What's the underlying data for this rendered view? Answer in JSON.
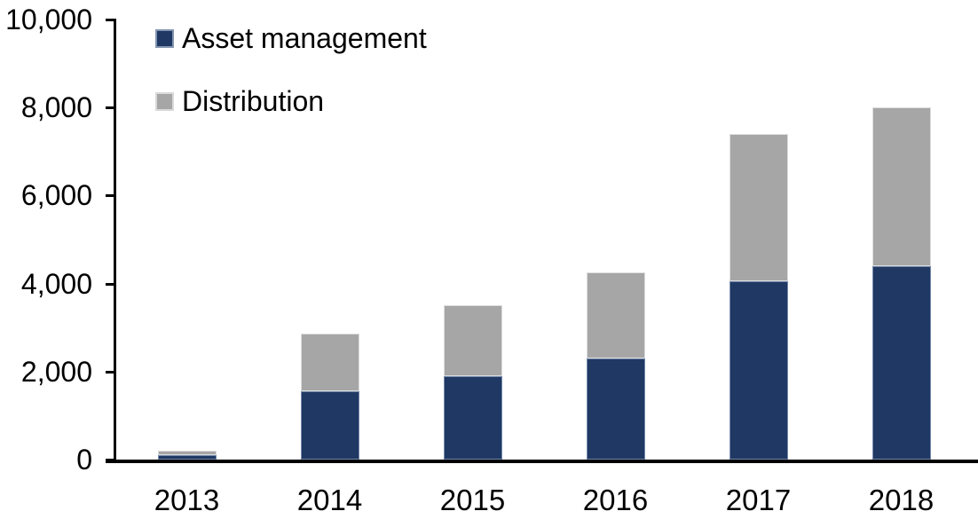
{
  "chart_data": {
    "type": "bar",
    "stacked": true,
    "title": "",
    "xlabel": "",
    "ylabel": "",
    "categories": [
      "2013",
      "2014",
      "2015",
      "2016",
      "2017",
      "2018"
    ],
    "series": [
      {
        "name": "Asset management",
        "color": "#1F3864",
        "values": [
          100,
          1550,
          1900,
          2300,
          4050,
          4400
        ]
      },
      {
        "name": "Distribution",
        "color": "#A6A6A6",
        "values": [
          100,
          1320,
          1600,
          1950,
          3350,
          3600
        ]
      }
    ],
    "totals": [
      200,
      2870,
      3500,
      4250,
      7400,
      8000
    ],
    "ylim": [
      0,
      10000
    ],
    "yticks": [
      0,
      2000,
      4000,
      6000,
      8000,
      10000
    ],
    "ytick_labels": [
      "0",
      "2,000",
      "4,000",
      "6,000",
      "8,000",
      "10,000"
    ],
    "grid": false,
    "legend_position": "top-left-inside",
    "background": "#FFFFFF",
    "axis_color": "#000000"
  },
  "legend": {
    "swatch_borders": [
      "#8496B0",
      "#D9D9D9"
    ]
  }
}
